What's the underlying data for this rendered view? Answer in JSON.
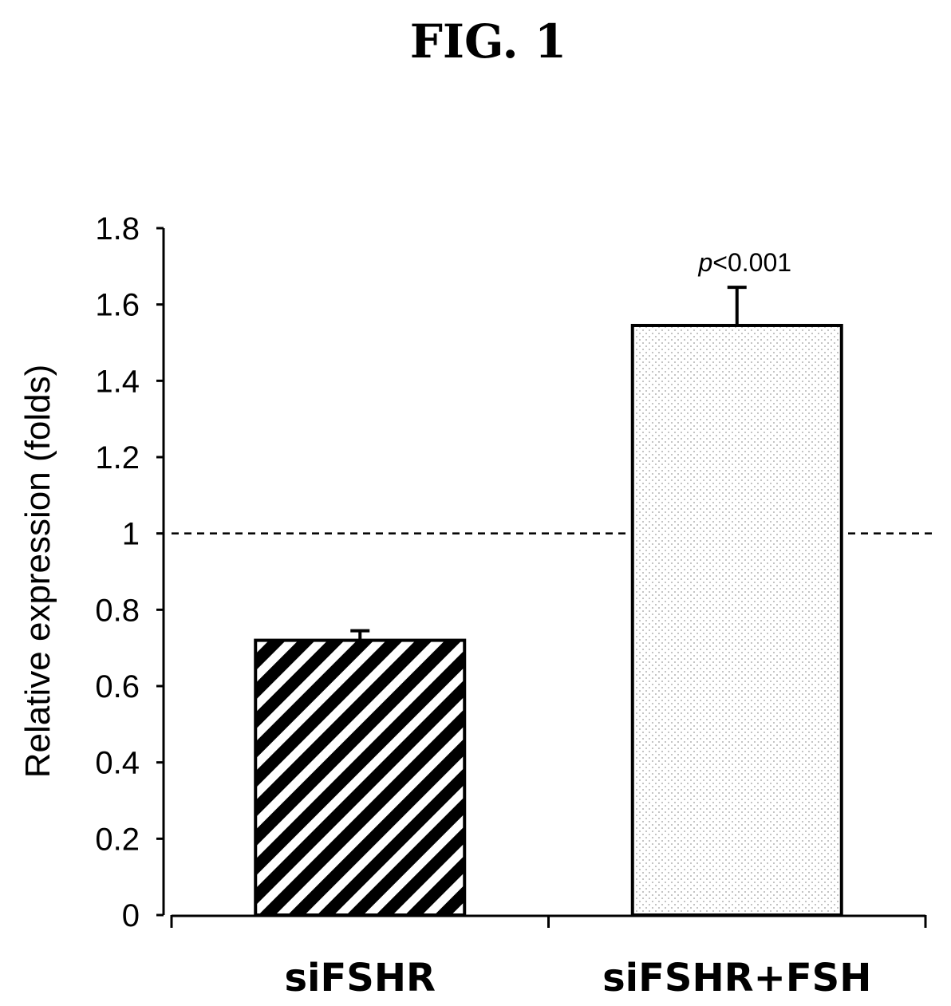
{
  "figure": {
    "title": "FIG. 1"
  },
  "chart_data": {
    "type": "bar",
    "categories": [
      "siFSHR",
      "siFSHR+FSH"
    ],
    "values": [
      0.72,
      1.545
    ],
    "errors": [
      0.025,
      0.1
    ],
    "bar_fills": [
      "diagonal-stripes",
      "fine-dots"
    ],
    "ylabel": "Relative expression (folds)",
    "xlabel": "",
    "ylim": [
      0,
      1.8
    ],
    "yticks": [
      "0",
      "0.2",
      "0.4",
      "0.6",
      "0.8",
      "1",
      "1.2",
      "1.4",
      "1.6",
      "1.8"
    ],
    "reference_line": {
      "y": 1,
      "style": "dashed"
    },
    "annotations": [
      {
        "category": "siFSHR+FSH",
        "italic": "p",
        "rest": "<0.001"
      }
    ],
    "grid": false,
    "legend": "none"
  }
}
